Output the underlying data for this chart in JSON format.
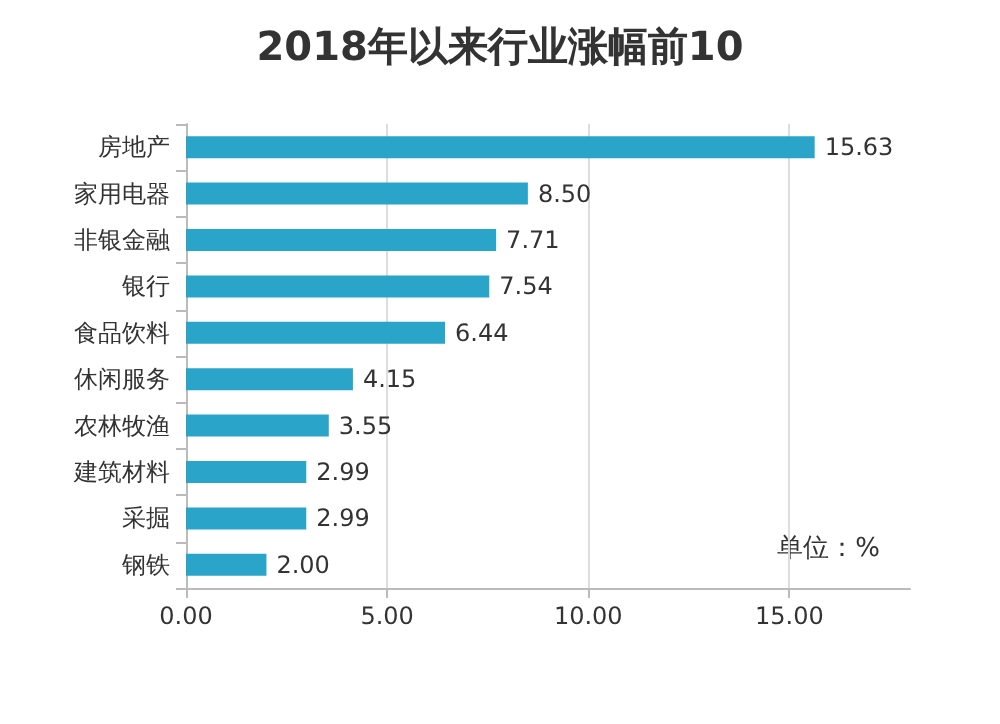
{
  "chart_data": {
    "type": "bar",
    "orientation": "horizontal",
    "title": "2018年以来行业涨幅前10",
    "categories": [
      "房地产",
      "家用电器",
      "非银金融",
      "银行",
      "食品饮料",
      "休闲服务",
      "农林牧渔",
      "建筑材料",
      "采掘",
      "钢铁"
    ],
    "values": [
      15.63,
      8.5,
      7.71,
      7.54,
      6.44,
      4.15,
      3.55,
      2.99,
      2.99,
      2.0
    ],
    "value_labels": [
      "15.63",
      "8.50",
      "7.71",
      "7.54",
      "6.44",
      "4.15",
      "3.55",
      "2.99",
      "2.99",
      "2.00"
    ],
    "color": "#2ba4c9",
    "xlim": [
      0,
      18
    ],
    "xticks": [
      {
        "value": 0,
        "label": "0.00"
      },
      {
        "value": 5,
        "label": "5.00"
      },
      {
        "value": 10,
        "label": "10.00"
      },
      {
        "value": 15,
        "label": "15.00"
      }
    ],
    "grid": "x",
    "annotations": [
      "单位：%"
    ]
  }
}
